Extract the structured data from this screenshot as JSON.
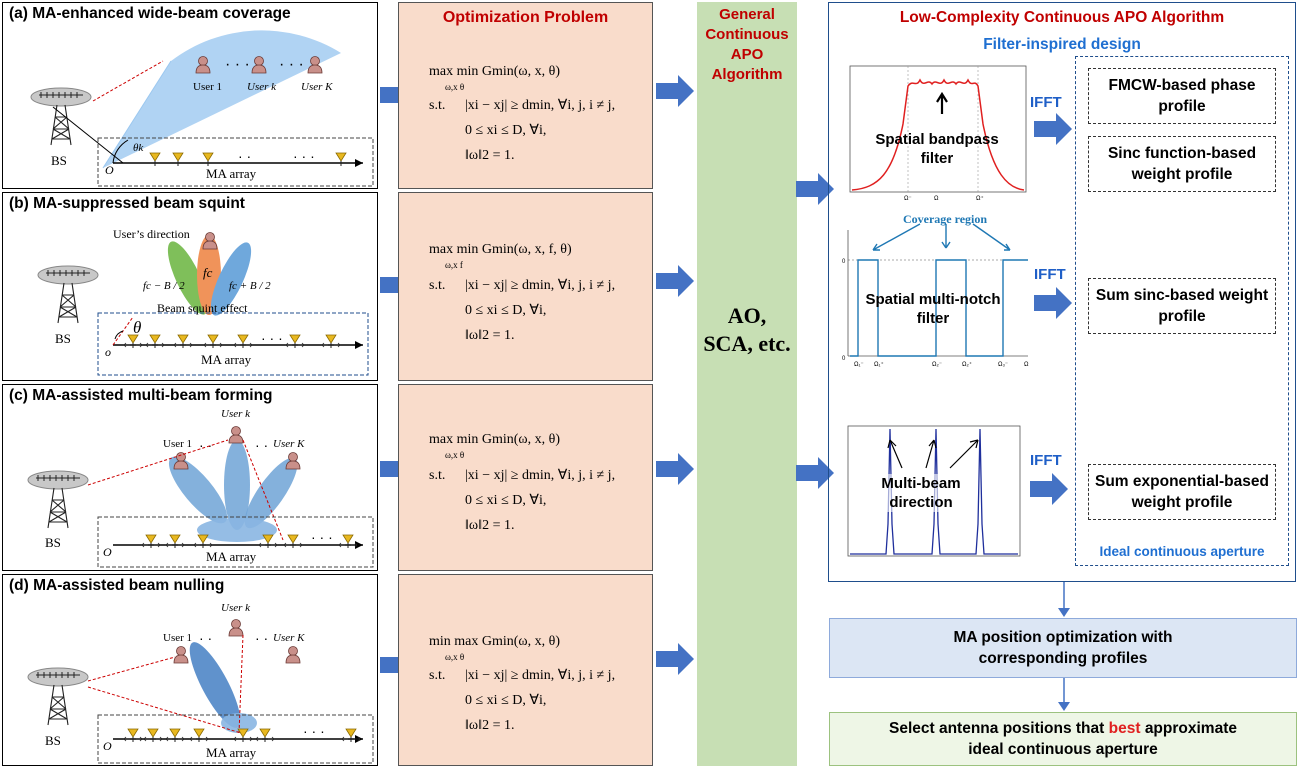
{
  "panels": [
    {
      "title": "(a) MA-enhanced wide-beam coverage",
      "bs": "BS",
      "array": "MA array",
      "origin": "O",
      "angle": "θk",
      "users": [
        "User 1",
        "User k",
        "User K"
      ]
    },
    {
      "title": "(b) MA-suppressed beam squint",
      "bs": "BS",
      "array": "MA array",
      "origin": "o",
      "angle": "θ",
      "direction": "User’s direction",
      "freq_low": "fc − B / 2",
      "freq_mid": "fc",
      "freq_high": "fc + B / 2",
      "effect": "Beam squint effect"
    },
    {
      "title": "(c) MA-assisted multi-beam forming",
      "bs": "BS",
      "array": "MA array",
      "origin": "O",
      "users": [
        "User 1",
        "User k",
        "User K"
      ]
    },
    {
      "title": "(d) MA-assisted beam nulling",
      "bs": "BS",
      "array": "MA array",
      "origin": "O",
      "users": [
        "User 1",
        "User k",
        "User K"
      ]
    }
  ],
  "optimization": {
    "title": "Optimization Problem",
    "problems": [
      {
        "obj": "max min Gmin(ω, x, θ)",
        "obj_sub": "ω,x θ"
      },
      {
        "obj": "max min Gmin(ω, x, f, θ)",
        "obj_sub": "ω,x f"
      },
      {
        "obj": "max min Gmin(ω, x, θ)",
        "obj_sub": "ω,x θ"
      },
      {
        "obj": "min max Gmin(ω, x, θ)",
        "obj_sub": "ω,x θ"
      }
    ],
    "st": "s.t.",
    "c1": "|xi − xj| ≥ dmin,  ∀i, j, i ≠ j,",
    "c2": "0 ≤ xi ≤ D,  ∀i,",
    "c3": "‖ω‖2 = 1."
  },
  "general": {
    "title": "General Continuous APO Algorithm",
    "methods": "AO, SCA, etc."
  },
  "right": {
    "title": "Low-Complexity Continuous APO Algorithm",
    "subtitle": "Filter-inspired design",
    "filters": [
      "Spatial bandpass filter",
      "Spatial multi-notch filter",
      "Multi-beam direction"
    ],
    "coverage": "Coverage region",
    "ifft": "IFFT",
    "profiles": [
      "FMCW-based phase profile",
      "Sinc function-based weight profile",
      "Sum sinc-based weight profile",
      "Sum exponential-based weight profile"
    ],
    "ideal": "Ideal continuous aperture"
  },
  "flow": {
    "step1": "MA position optimization with corresponding profiles",
    "step2_pre": "Select antenna positions that",
    "step2_best": "best",
    "step2_post": "approximate ideal continuous aperture"
  },
  "colors": {
    "red": "#c00000",
    "blue": "#1f6fd1",
    "arrow": "#4472c4",
    "green": "#c7dfb4",
    "peach": "#f9dccb",
    "filter": "#e02020"
  }
}
